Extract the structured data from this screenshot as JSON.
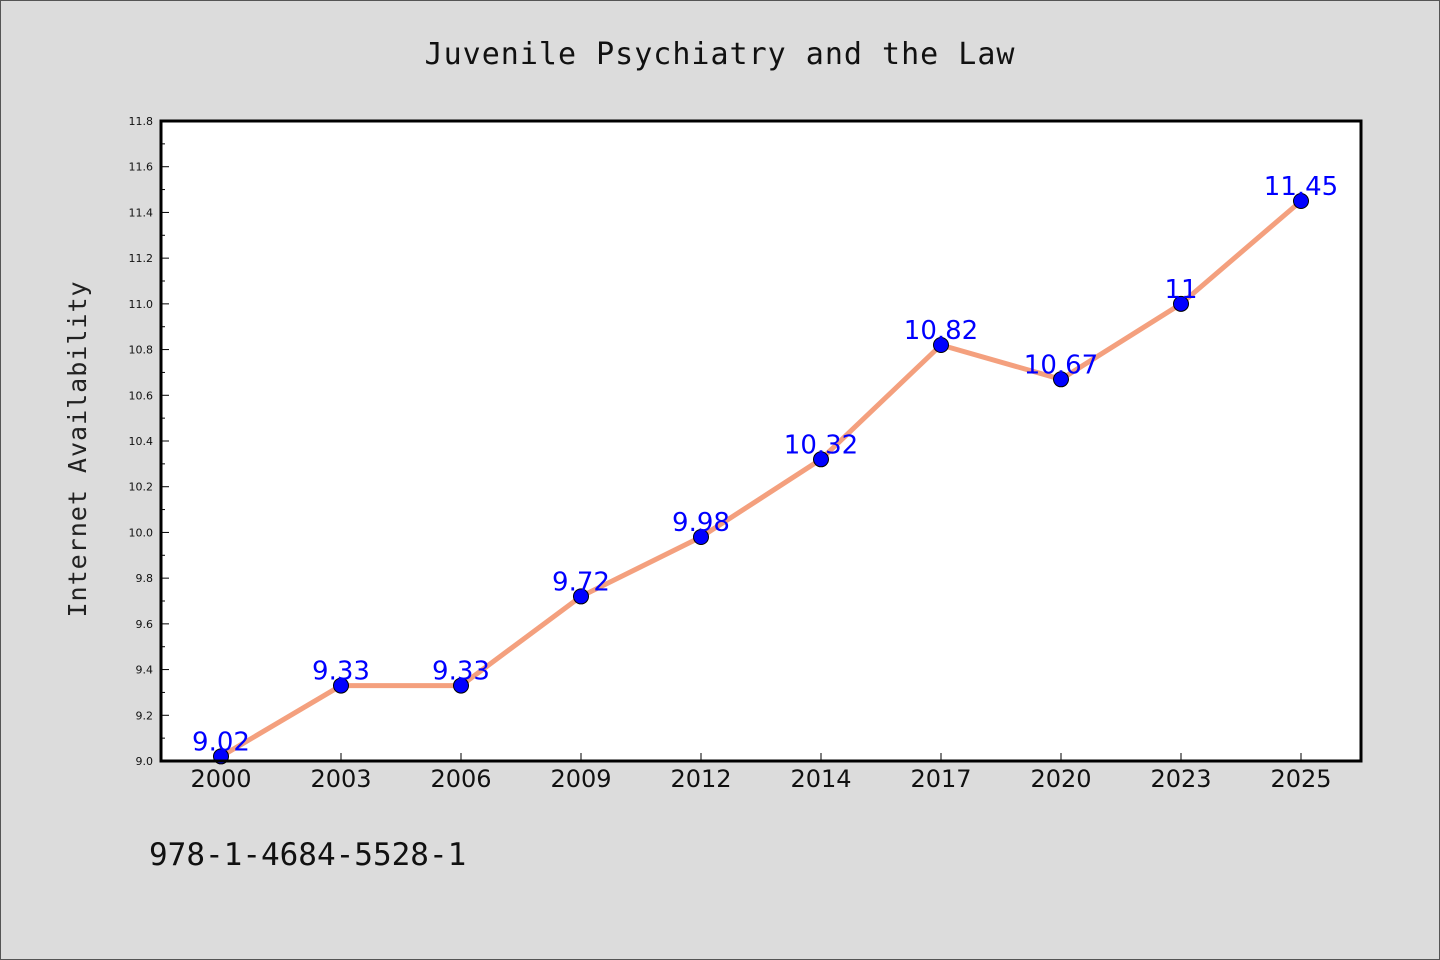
{
  "chart_data": {
    "type": "line",
    "title": "Juvenile Psychiatry and the Law",
    "xlabel": "",
    "ylabel": "Internet Availability",
    "categories": [
      "2000",
      "2003",
      "2006",
      "2009",
      "2012",
      "2014",
      "2017",
      "2020",
      "2023",
      "2025"
    ],
    "series": [
      {
        "values": [
          9.02,
          9.33,
          9.33,
          9.72,
          9.98,
          10.32,
          10.82,
          10.67,
          11,
          11.45
        ],
        "labels": [
          "9.02",
          "9.33",
          "9.33",
          "9.72",
          "9.98",
          "10.32",
          "10.82",
          "10.67",
          "11",
          "11.45"
        ],
        "line_color": "#f4a07e",
        "marker_color": "#0000ff"
      }
    ],
    "ylim": [
      9.0,
      11.8
    ],
    "yticks": [
      "9.0",
      "9.2",
      "9.4",
      "9.6",
      "9.8",
      "10.0",
      "10.2",
      "10.4",
      "10.6",
      "10.8",
      "11.0",
      "11.2",
      "11.4",
      "11.6",
      "11.8"
    ],
    "grid": false,
    "legend": "none"
  },
  "footer_text": "978-1-4684-5528-1",
  "colors": {
    "background": "#dcdcdc",
    "plot_background": "#ffffff",
    "data_label": "#0000ff"
  }
}
